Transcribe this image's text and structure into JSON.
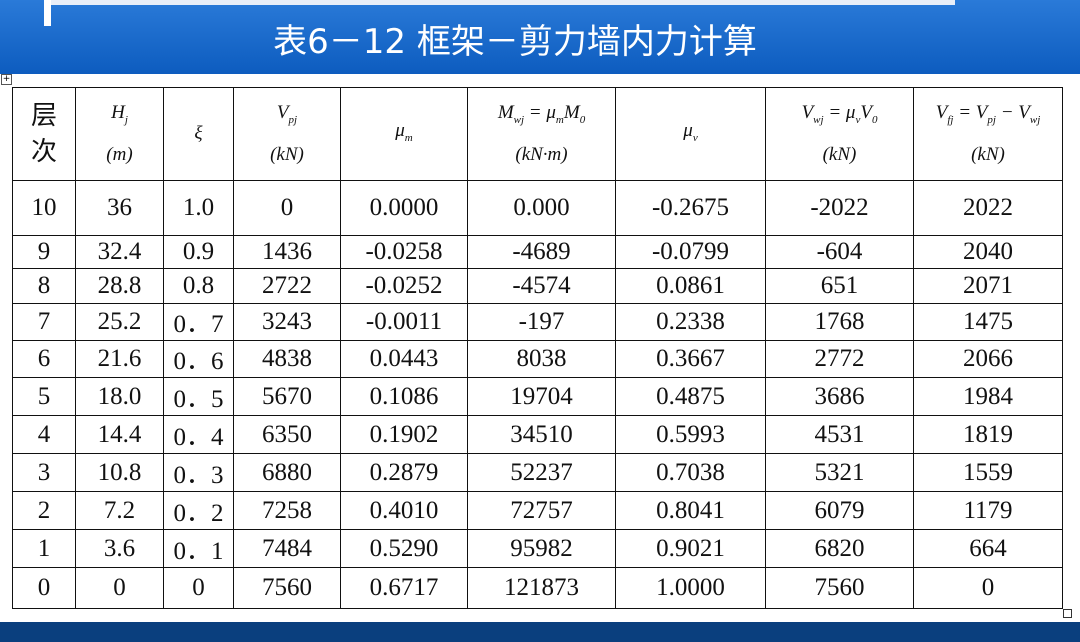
{
  "title": "表6－12 框架－剪力墙内力计算",
  "table": {
    "header": [
      [
        [
          "层"
        ],
        [
          "次"
        ]
      ],
      [
        [
          "H",
          {
            "sub": "j"
          }
        ],
        [
          "(m)"
        ]
      ],
      [
        [
          "ξ"
        ]
      ],
      [
        [
          "V",
          {
            "sub": "pj"
          }
        ],
        [
          "(kN)"
        ]
      ],
      [
        [
          "μ",
          {
            "sub": "m"
          }
        ]
      ],
      [
        [
          "M",
          {
            "sub": "wj"
          },
          " = μ",
          {
            "sub": "m"
          },
          "M",
          {
            "sub": "0"
          }
        ],
        [
          "(kN·m)"
        ]
      ],
      [
        [
          "μ",
          {
            "sub": "v"
          }
        ]
      ],
      [
        [
          "V",
          {
            "sub": "wj"
          },
          " = μ",
          {
            "sub": "v"
          },
          "V",
          {
            "sub": "0"
          }
        ],
        [
          "(kN)"
        ]
      ],
      [
        [
          "V",
          {
            "sub": "fj"
          },
          " = V",
          {
            "sub": "pj"
          },
          " − V",
          {
            "sub": "wj"
          }
        ],
        [
          "(kN)"
        ]
      ]
    ],
    "rows": [
      [
        "10",
        "36",
        "1.0",
        "0",
        "0.0000",
        "0.000",
        "-0.2675",
        "-2022",
        "2022"
      ],
      [
        "9",
        "32.4",
        "0.9",
        "1436",
        "-0.0258",
        "-4689",
        "-0.0799",
        "-604",
        "2040"
      ],
      [
        "8",
        "28.8",
        "0.8",
        "2722",
        "-0.0252",
        "-4574",
        "0.0861",
        "651",
        "2071"
      ],
      [
        "7",
        "25.2",
        "0．7",
        "3243",
        "-0.0011",
        "-197",
        "0.2338",
        "1768",
        "1475"
      ],
      [
        "6",
        "21.6",
        "0．6",
        "4838",
        "0.0443",
        "8038",
        "0.3667",
        "2772",
        "2066"
      ],
      [
        "5",
        "18.0",
        "0．5",
        "5670",
        "0.1086",
        "19704",
        "0.4875",
        "3686",
        "1984"
      ],
      [
        "4",
        "14.4",
        "0．4",
        "6350",
        "0.1902",
        "34510",
        "0.5993",
        "4531",
        "1819"
      ],
      [
        "3",
        "10.8",
        "0．3",
        "6880",
        "0.2879",
        "52237",
        "0.7038",
        "5321",
        "1559"
      ],
      [
        "2",
        "7.2",
        "0．2",
        "7258",
        "0.4010",
        "72757",
        "0.8041",
        "6079",
        "1179"
      ],
      [
        "1",
        "3.6",
        "0．1",
        "7484",
        "0.5290",
        "95982",
        "0.9021",
        "6820",
        "664"
      ],
      [
        "0",
        "0",
        "0",
        "7560",
        "0.6717",
        "121873",
        "1.0000",
        "7560",
        "0"
      ]
    ]
  }
}
